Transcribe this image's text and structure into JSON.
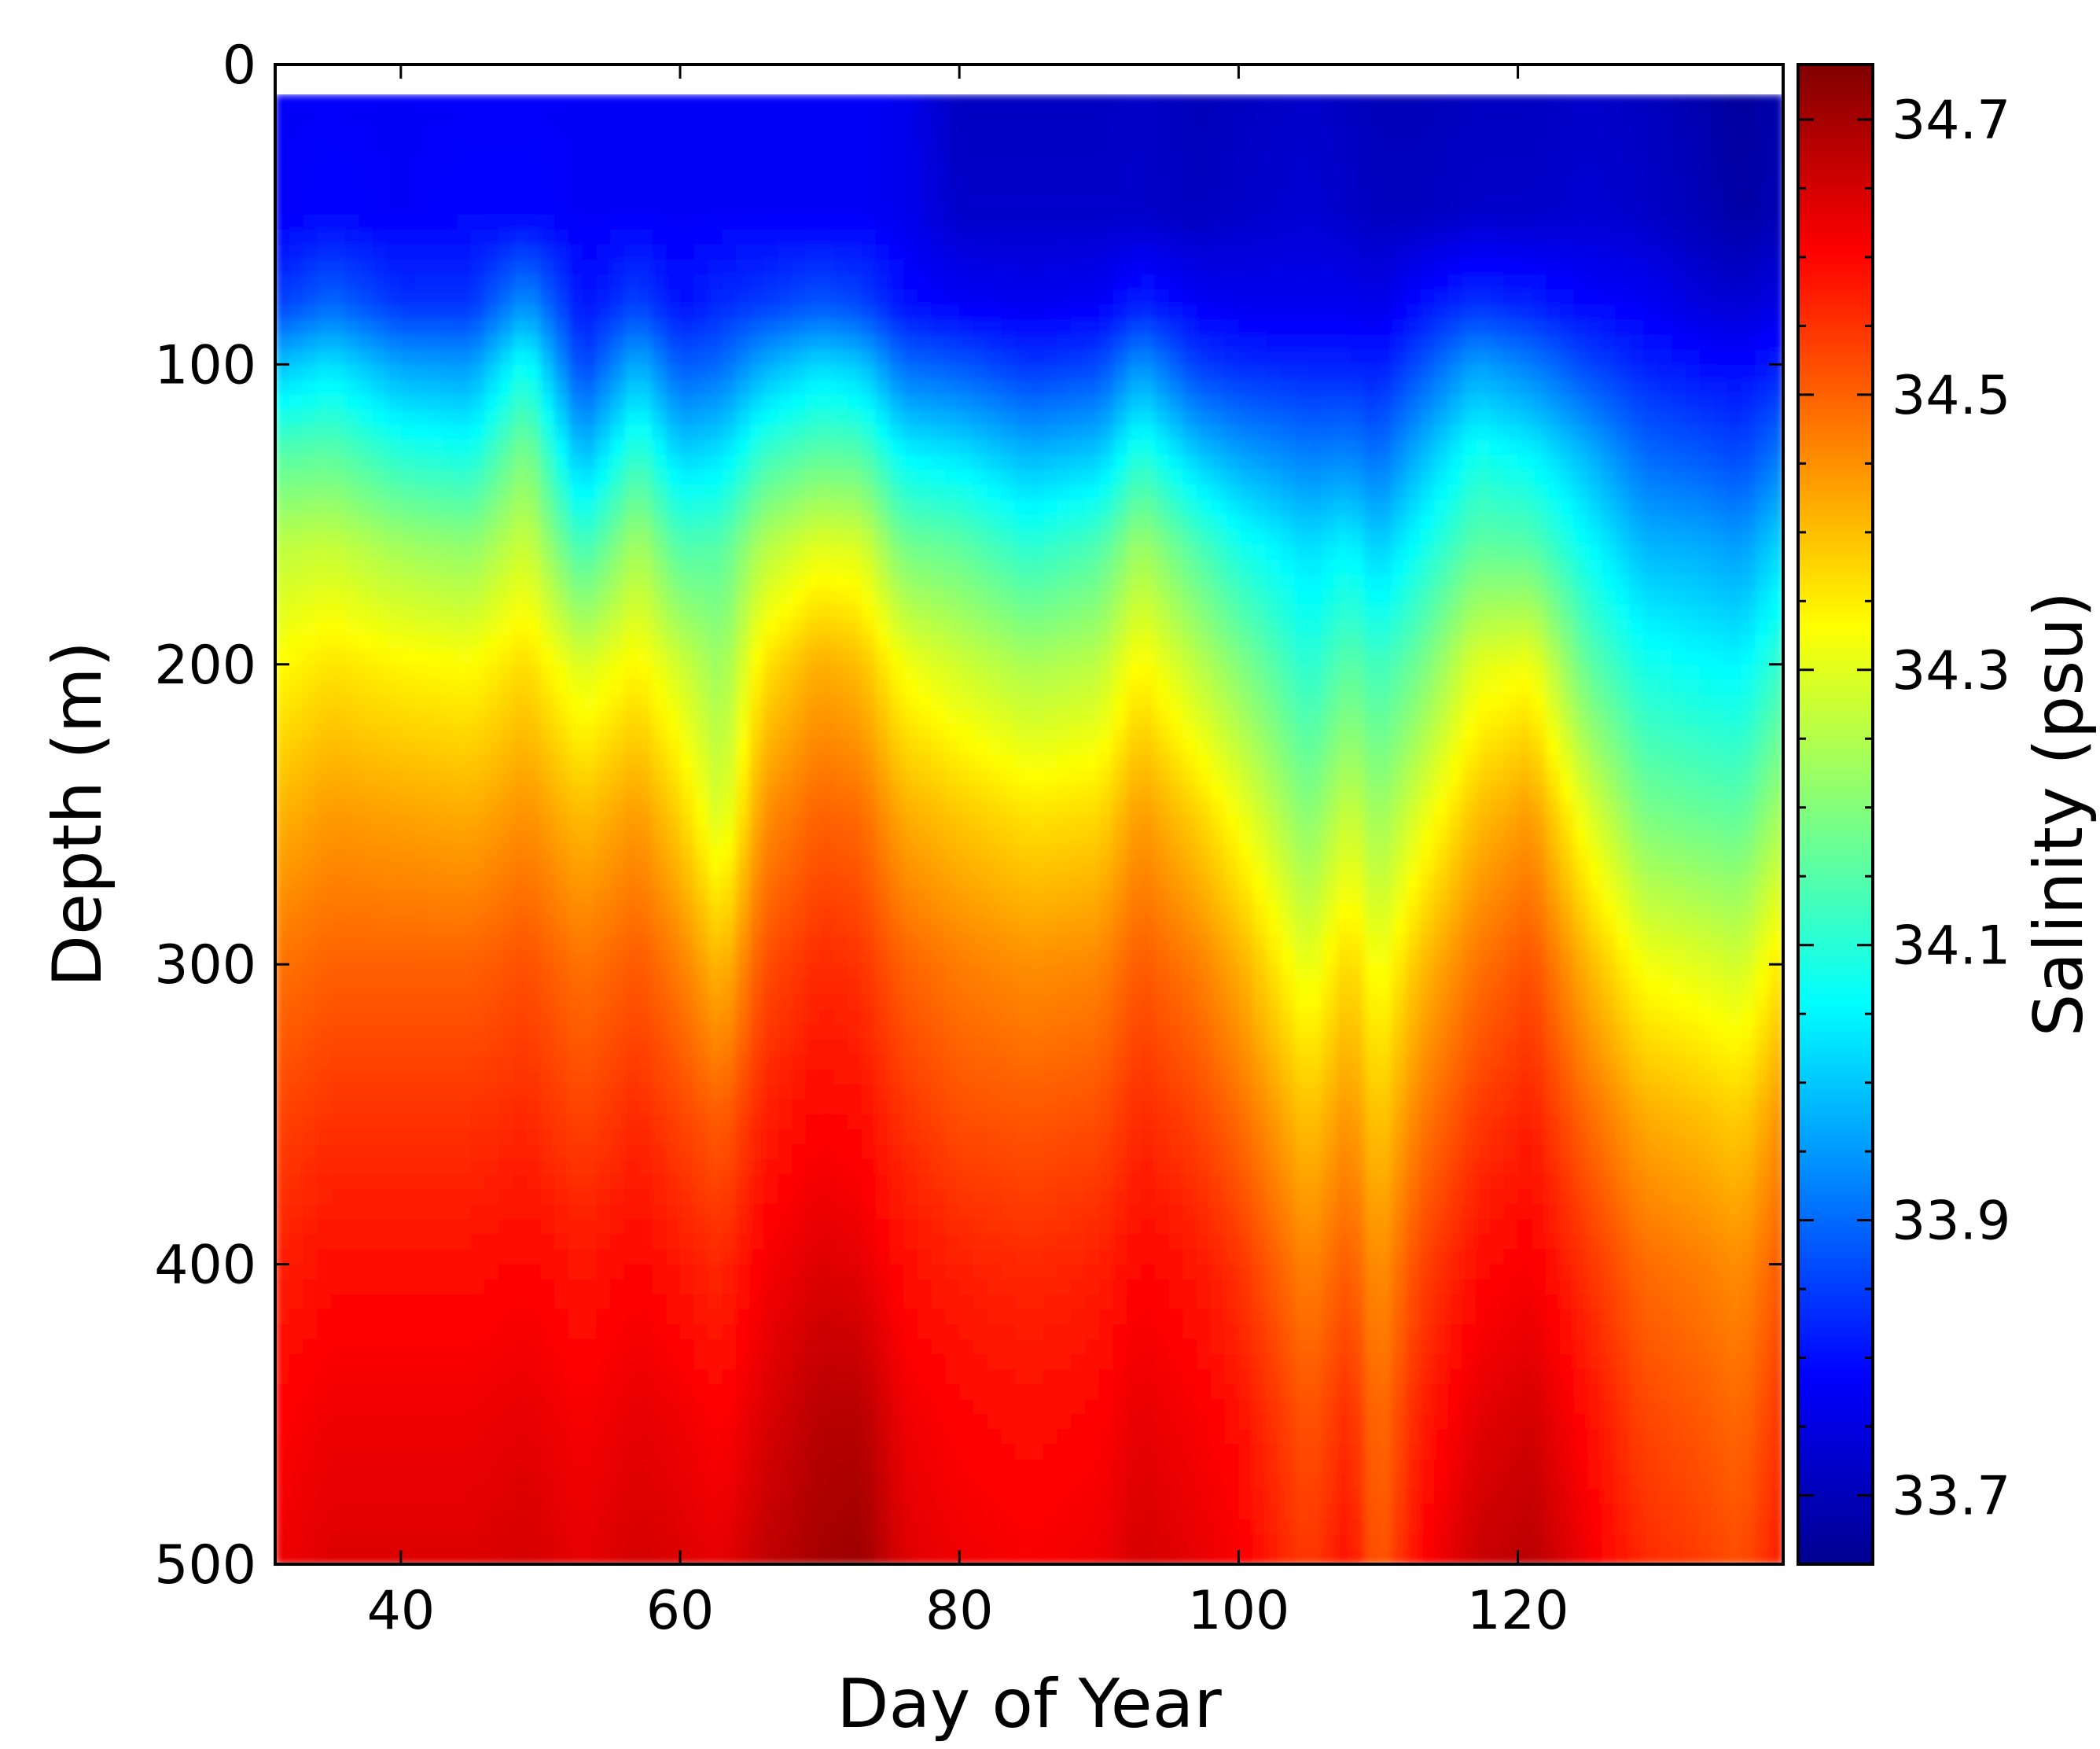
{
  "chart_data": {
    "type": "heatmap",
    "title": "",
    "xlabel": "Day of Year",
    "ylabel": "Depth (m)",
    "colorbar_label": "Salinity (psu)",
    "xlim": [
      31,
      139
    ],
    "ylim": [
      0,
      500
    ],
    "y_inverted": true,
    "x_ticks": [
      40,
      60,
      80,
      100,
      120
    ],
    "y_ticks": [
      0,
      100,
      200,
      300,
      400,
      500
    ],
    "colorbar_range": [
      33.65,
      34.74
    ],
    "colorbar_ticks": [
      33.7,
      33.9,
      34.1,
      34.3,
      34.5,
      34.7
    ],
    "colorbar_ticks_text": [
      "33.7",
      "33.9",
      "34.1",
      "34.3",
      "34.5",
      "34.7"
    ],
    "colormap": "jet",
    "grid": false,
    "no_data_depth_range": [
      0,
      10
    ],
    "days": [
      31,
      35,
      40,
      45,
      49,
      53,
      57,
      60,
      63,
      66,
      70,
      73,
      76,
      80,
      85,
      90,
      93,
      97,
      100,
      105,
      108,
      110,
      113,
      117,
      121,
      125,
      129,
      133,
      136,
      139
    ],
    "depths": [
      10,
      50,
      80,
      100,
      130,
      160,
      200,
      250,
      300,
      350,
      400,
      450,
      500
    ],
    "values": [
      [
        33.78,
        33.78,
        33.78,
        33.78,
        33.78,
        33.78,
        33.78,
        33.78,
        33.78,
        33.78,
        33.78,
        33.78,
        33.77,
        33.72,
        33.72,
        33.72,
        33.73,
        33.71,
        33.72,
        33.73,
        33.72,
        33.71,
        33.71,
        33.72,
        33.72,
        33.73,
        33.72,
        33.7,
        33.68,
        33.7
      ],
      [
        33.78,
        33.79,
        33.78,
        33.79,
        33.79,
        33.78,
        33.78,
        33.78,
        33.78,
        33.78,
        33.78,
        33.78,
        33.77,
        33.73,
        33.73,
        33.73,
        33.73,
        33.72,
        33.73,
        33.74,
        33.73,
        33.72,
        33.72,
        33.73,
        33.73,
        33.74,
        33.73,
        33.71,
        33.69,
        33.71
      ],
      [
        33.85,
        33.9,
        33.84,
        33.84,
        33.95,
        33.8,
        33.86,
        33.8,
        33.83,
        33.85,
        33.88,
        33.86,
        33.8,
        33.78,
        33.77,
        33.78,
        33.82,
        33.78,
        33.77,
        33.77,
        33.77,
        33.76,
        33.8,
        33.84,
        33.82,
        33.79,
        33.78,
        33.75,
        33.74,
        33.76
      ],
      [
        33.99,
        34.03,
        33.96,
        33.95,
        34.08,
        33.85,
        33.98,
        33.88,
        33.9,
        33.97,
        34.02,
        34.0,
        33.9,
        33.88,
        33.84,
        33.86,
        33.95,
        33.85,
        33.83,
        33.82,
        33.82,
        33.81,
        33.87,
        33.96,
        33.92,
        33.86,
        33.82,
        33.8,
        33.79,
        33.82
      ],
      [
        34.15,
        34.16,
        34.1,
        34.08,
        34.2,
        33.98,
        34.12,
        34.01,
        34.03,
        34.12,
        34.16,
        34.15,
        34.05,
        34.03,
        33.98,
        34.0,
        34.1,
        34.0,
        33.96,
        33.92,
        33.93,
        33.9,
        33.98,
        34.08,
        34.05,
        33.98,
        33.9,
        33.88,
        33.86,
        33.92
      ],
      [
        34.26,
        34.27,
        34.23,
        34.21,
        34.28,
        34.12,
        34.24,
        34.14,
        34.15,
        34.25,
        34.3,
        34.29,
        34.18,
        34.16,
        34.1,
        34.14,
        34.23,
        34.14,
        34.08,
        34.02,
        34.05,
        34.0,
        34.07,
        34.16,
        34.15,
        34.06,
        33.98,
        33.97,
        33.95,
        34.02
      ],
      [
        34.33,
        34.36,
        34.34,
        34.33,
        34.37,
        34.29,
        34.34,
        34.28,
        34.22,
        34.36,
        34.42,
        34.4,
        34.32,
        34.28,
        34.24,
        34.26,
        34.34,
        34.26,
        34.2,
        34.1,
        34.16,
        34.12,
        34.18,
        34.3,
        34.32,
        34.16,
        34.08,
        34.06,
        34.05,
        34.12
      ],
      [
        34.41,
        34.44,
        34.43,
        34.42,
        34.45,
        34.4,
        34.44,
        34.38,
        34.28,
        34.45,
        34.5,
        34.49,
        34.42,
        34.39,
        34.36,
        34.37,
        34.44,
        34.38,
        34.32,
        34.2,
        34.28,
        34.22,
        34.3,
        34.4,
        34.44,
        34.3,
        34.19,
        34.17,
        34.16,
        34.24
      ],
      [
        34.48,
        34.5,
        34.5,
        34.5,
        34.52,
        34.48,
        34.51,
        34.47,
        34.4,
        34.52,
        34.56,
        34.55,
        34.5,
        34.47,
        34.45,
        34.46,
        34.51,
        34.47,
        34.42,
        34.3,
        34.38,
        34.31,
        34.4,
        34.48,
        34.52,
        34.41,
        34.32,
        34.3,
        34.28,
        34.36
      ],
      [
        34.53,
        34.55,
        34.55,
        34.55,
        34.56,
        34.53,
        34.56,
        34.53,
        34.5,
        34.57,
        34.6,
        34.59,
        34.55,
        34.52,
        34.51,
        34.52,
        34.56,
        34.53,
        34.49,
        34.39,
        34.45,
        34.38,
        34.47,
        34.54,
        34.57,
        34.49,
        34.42,
        34.4,
        34.38,
        34.45
      ],
      [
        34.57,
        34.59,
        34.59,
        34.59,
        34.6,
        34.58,
        34.6,
        34.58,
        34.56,
        34.61,
        34.64,
        34.63,
        34.59,
        34.57,
        34.56,
        34.57,
        34.6,
        34.58,
        34.55,
        34.46,
        34.51,
        34.44,
        34.53,
        34.59,
        34.61,
        34.55,
        34.49,
        34.47,
        34.45,
        34.51
      ],
      [
        34.6,
        34.62,
        34.62,
        34.62,
        34.63,
        34.61,
        34.63,
        34.62,
        34.6,
        34.64,
        34.68,
        34.68,
        34.62,
        34.6,
        34.59,
        34.6,
        34.63,
        34.61,
        34.59,
        34.51,
        34.56,
        34.48,
        34.57,
        34.63,
        34.65,
        34.59,
        34.53,
        34.51,
        34.49,
        34.55
      ],
      [
        34.62,
        34.64,
        34.64,
        34.64,
        34.65,
        34.63,
        34.65,
        34.64,
        34.63,
        34.67,
        34.7,
        34.71,
        34.64,
        34.62,
        34.61,
        34.62,
        34.65,
        34.63,
        34.61,
        34.54,
        34.59,
        34.5,
        34.6,
        34.66,
        34.68,
        34.62,
        34.56,
        34.54,
        34.52,
        34.58
      ]
    ]
  }
}
